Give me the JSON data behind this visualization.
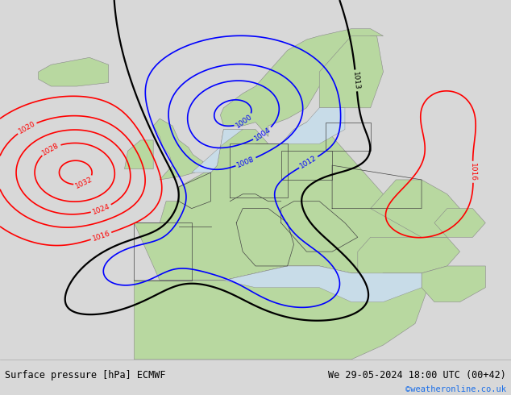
{
  "title_left": "Surface pressure [hPa] ECMWF",
  "title_right": "We 29-05-2024 18:00 UTC (00+42)",
  "copyright": "©weatheronline.co.uk",
  "bg_map_color": "#b8d8a0",
  "land_color": "#b8d8a0",
  "sea_color": "#c8dce8",
  "bottom_bar_color": "#d8d8d8",
  "bottom_text_color": "#000000",
  "copyright_color": "#1a6ee8",
  "fig_width": 6.34,
  "fig_height": 4.9,
  "dpi": 100,
  "lon_min": -30,
  "lon_max": 50,
  "lat_min": 25,
  "lat_max": 75
}
